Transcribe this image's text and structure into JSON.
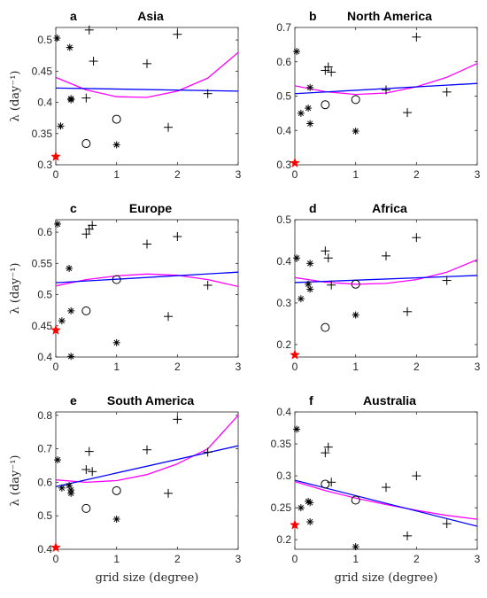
{
  "colors": {
    "linear_fit": "#0000ff",
    "quadratic_fit": "#ff00ff",
    "highlight": "#ff0000",
    "markers": "#000000"
  },
  "chart_data": [
    {
      "type": "scatter",
      "letter": "a",
      "title": "Asia",
      "ylabel": "λ (day⁻¹)",
      "xlabel": "",
      "xlim": [
        0,
        3
      ],
      "ylim": [
        0.3,
        0.52
      ],
      "xticks": [
        "0",
        "1",
        "2",
        "3"
      ],
      "yticks": [
        "0.3",
        "0.35",
        "0.4",
        "0.45",
        "0.5"
      ],
      "star": [
        0.0,
        0.313
      ],
      "asterisk": [
        [
          0.02,
          0.503
        ],
        [
          0.08,
          0.362
        ],
        [
          0.23,
          0.488
        ],
        [
          0.25,
          0.406
        ],
        [
          0.25,
          0.404
        ],
        [
          1.0,
          0.332
        ]
      ],
      "plus": [
        [
          0.5,
          0.407
        ],
        [
          0.55,
          0.516
        ],
        [
          0.62,
          0.466
        ],
        [
          1.5,
          0.462
        ],
        [
          1.85,
          0.36
        ],
        [
          2.0,
          0.509
        ],
        [
          2.5,
          0.414
        ]
      ],
      "circle": [
        [
          0.5,
          0.334
        ],
        [
          1.0,
          0.373
        ]
      ],
      "linear": [
        0.423,
        0.418
      ],
      "quadratic": [
        [
          0,
          0.44
        ],
        [
          0.5,
          0.42
        ],
        [
          1,
          0.409
        ],
        [
          1.5,
          0.408
        ],
        [
          2,
          0.418
        ],
        [
          2.5,
          0.439
        ],
        [
          3,
          0.48
        ]
      ]
    },
    {
      "type": "scatter",
      "letter": "b",
      "title": "North America",
      "ylabel": "",
      "xlabel": "",
      "xlim": [
        0,
        3
      ],
      "ylim": [
        0.3,
        0.7
      ],
      "xticks": [
        "0",
        "1",
        "2",
        "3"
      ],
      "yticks": [
        "0.3",
        "0.4",
        "0.5",
        "0.6",
        "0.7"
      ],
      "star": [
        0.0,
        0.305
      ],
      "asterisk": [
        [
          0.03,
          0.63
        ],
        [
          0.1,
          0.45
        ],
        [
          0.22,
          0.465
        ],
        [
          0.25,
          0.525
        ],
        [
          0.25,
          0.42
        ],
        [
          1.0,
          0.398
        ]
      ],
      "plus": [
        [
          0.5,
          0.575
        ],
        [
          0.55,
          0.585
        ],
        [
          0.6,
          0.57
        ],
        [
          1.5,
          0.518
        ],
        [
          1.85,
          0.452
        ],
        [
          2.0,
          0.672
        ],
        [
          2.5,
          0.512
        ]
      ],
      "circle": [
        [
          0.5,
          0.475
        ],
        [
          1.0,
          0.49
        ]
      ],
      "linear": [
        0.507,
        0.537
      ],
      "quadratic": [
        [
          0,
          0.53
        ],
        [
          0.5,
          0.513
        ],
        [
          1,
          0.505
        ],
        [
          1.5,
          0.509
        ],
        [
          2,
          0.527
        ],
        [
          2.5,
          0.555
        ],
        [
          3,
          0.595
        ]
      ]
    },
    {
      "type": "scatter",
      "letter": "c",
      "title": "Europe",
      "ylabel": "λ (day⁻¹)",
      "xlabel": "",
      "xlim": [
        0,
        3
      ],
      "ylim": [
        0.4,
        0.62
      ],
      "xticks": [
        "0",
        "1",
        "2",
        "3"
      ],
      "yticks": [
        "0.4",
        "0.45",
        "0.5",
        "0.55",
        "0.6"
      ],
      "star": [
        0.0,
        0.443
      ],
      "asterisk": [
        [
          0.03,
          0.613
        ],
        [
          0.1,
          0.458
        ],
        [
          0.22,
          0.542
        ],
        [
          0.25,
          0.474
        ],
        [
          0.25,
          0.401
        ],
        [
          1.0,
          0.423
        ]
      ],
      "plus": [
        [
          0.5,
          0.597
        ],
        [
          0.55,
          0.605
        ],
        [
          0.6,
          0.611
        ],
        [
          1.5,
          0.581
        ],
        [
          1.85,
          0.465
        ],
        [
          2.0,
          0.593
        ],
        [
          2.5,
          0.515
        ]
      ],
      "circle": [
        [
          0.5,
          0.474
        ],
        [
          1.0,
          0.524
        ]
      ],
      "linear": [
        0.519,
        0.536
      ],
      "quadratic": [
        [
          0,
          0.514
        ],
        [
          0.5,
          0.524
        ],
        [
          1,
          0.53
        ],
        [
          1.5,
          0.533
        ],
        [
          2,
          0.531
        ],
        [
          2.5,
          0.524
        ],
        [
          3,
          0.513
        ]
      ]
    },
    {
      "type": "scatter",
      "letter": "d",
      "title": "Africa",
      "ylabel": "",
      "xlabel": "",
      "xlim": [
        0,
        3
      ],
      "ylim": [
        0.17,
        0.5
      ],
      "xticks": [
        "0",
        "1",
        "2",
        "3"
      ],
      "yticks": [
        "0.2",
        "0.3",
        "0.4",
        "0.5"
      ],
      "star": [
        0.0,
        0.175
      ],
      "asterisk": [
        [
          0.03,
          0.408
        ],
        [
          0.1,
          0.31
        ],
        [
          0.22,
          0.345
        ],
        [
          0.25,
          0.395
        ],
        [
          0.25,
          0.333
        ],
        [
          1.0,
          0.271
        ]
      ],
      "plus": [
        [
          0.5,
          0.425
        ],
        [
          0.55,
          0.408
        ],
        [
          0.6,
          0.343
        ],
        [
          1.5,
          0.413
        ],
        [
          1.85,
          0.279
        ],
        [
          2.0,
          0.457
        ],
        [
          2.5,
          0.354
        ]
      ],
      "circle": [
        [
          0.5,
          0.241
        ],
        [
          1.0,
          0.345
        ]
      ],
      "linear": [
        0.349,
        0.366
      ],
      "quadratic": [
        [
          0,
          0.361
        ],
        [
          0.5,
          0.35
        ],
        [
          1,
          0.345
        ],
        [
          1.5,
          0.347
        ],
        [
          2,
          0.356
        ],
        [
          2.5,
          0.374
        ],
        [
          3,
          0.404
        ]
      ]
    },
    {
      "type": "scatter",
      "letter": "e",
      "title": "South America",
      "ylabel": "λ (day⁻¹)",
      "xlabel": "grid size (degree)",
      "xlim": [
        0,
        3
      ],
      "ylim": [
        0.4,
        0.81
      ],
      "xticks": [
        "0",
        "1",
        "2",
        "3"
      ],
      "yticks": [
        "0.4",
        "0.5",
        "0.6",
        "0.7",
        "0.8"
      ],
      "star": [
        0.0,
        0.405
      ],
      "asterisk": [
        [
          0.03,
          0.667
        ],
        [
          0.1,
          0.583
        ],
        [
          0.22,
          0.59
        ],
        [
          0.25,
          0.577
        ],
        [
          0.25,
          0.567
        ],
        [
          1.0,
          0.49
        ]
      ],
      "plus": [
        [
          0.5,
          0.638
        ],
        [
          0.55,
          0.692
        ],
        [
          0.6,
          0.632
        ],
        [
          1.5,
          0.697
        ],
        [
          1.85,
          0.567
        ],
        [
          2.0,
          0.788
        ],
        [
          2.5,
          0.69
        ]
      ],
      "circle": [
        [
          0.5,
          0.522
        ],
        [
          1.0,
          0.575
        ]
      ],
      "linear": [
        0.587,
        0.709
      ],
      "quadratic": [
        [
          0,
          0.607
        ],
        [
          0.5,
          0.6
        ],
        [
          1,
          0.605
        ],
        [
          1.5,
          0.623
        ],
        [
          2,
          0.655
        ],
        [
          2.5,
          0.7
        ],
        [
          3,
          0.8
        ]
      ]
    },
    {
      "type": "scatter",
      "letter": "f",
      "title": "Australia",
      "ylabel": "",
      "xlabel": "grid size (degree)",
      "xlim": [
        0,
        3
      ],
      "ylim": [
        0.185,
        0.4
      ],
      "xticks": [
        "0",
        "1",
        "2",
        "3"
      ],
      "yticks": [
        "0.2",
        "0.25",
        "0.3",
        "0.35",
        "0.4"
      ],
      "star": [
        0.0,
        0.223
      ],
      "asterisk": [
        [
          0.03,
          0.373
        ],
        [
          0.1,
          0.25
        ],
        [
          0.22,
          0.26
        ],
        [
          0.25,
          0.258
        ],
        [
          0.25,
          0.228
        ],
        [
          1.0,
          0.189
        ]
      ],
      "plus": [
        [
          0.5,
          0.336
        ],
        [
          0.55,
          0.345
        ],
        [
          0.6,
          0.29
        ],
        [
          1.5,
          0.282
        ],
        [
          1.85,
          0.206
        ],
        [
          2.0,
          0.3
        ],
        [
          2.5,
          0.225
        ]
      ],
      "circle": [
        [
          0.5,
          0.287
        ],
        [
          1.0,
          0.262
        ]
      ],
      "linear": [
        0.293,
        0.221
      ],
      "quadratic": [
        [
          0,
          0.291
        ],
        [
          0.5,
          0.277
        ],
        [
          1,
          0.265
        ],
        [
          1.5,
          0.255
        ],
        [
          2,
          0.246
        ],
        [
          2.5,
          0.238
        ],
        [
          3,
          0.232
        ]
      ]
    }
  ]
}
